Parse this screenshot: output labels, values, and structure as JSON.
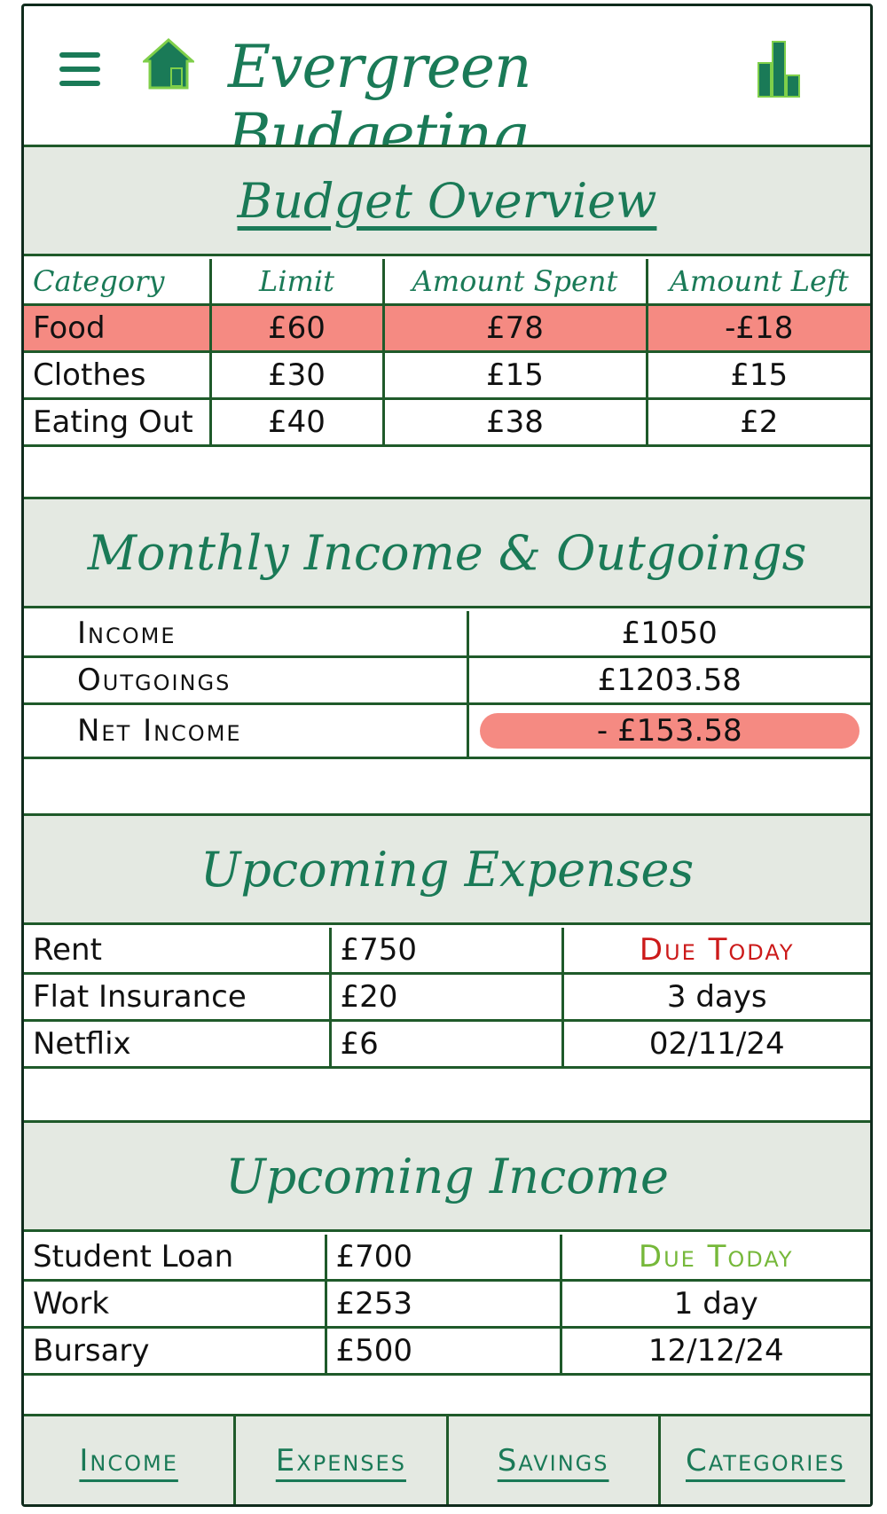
{
  "header": {
    "title": "Evergreen Budgeting",
    "menu_icon": "hamburger-menu-icon",
    "home_icon": "home-icon",
    "stats_icon": "bar-chart-icon"
  },
  "budget_overview": {
    "heading": "Budget Overview",
    "columns": [
      "Category",
      "Limit",
      "Amount Spent",
      "Amount Left"
    ],
    "rows": [
      {
        "category": "Food",
        "limit": "£60",
        "spent": "£78",
        "left": "-£18"
      },
      {
        "category": "Clothes",
        "limit": "£30",
        "spent": "£15",
        "left": "£15"
      },
      {
        "category": "Eating Out",
        "limit": "£40",
        "spent": "£38",
        "left": "£2"
      }
    ]
  },
  "monthly": {
    "heading": "Monthly Income & Outgoings",
    "rows": [
      {
        "label": "Income",
        "value": "£1050"
      },
      {
        "label": "Outgoings",
        "value": "£1203.58"
      },
      {
        "label": "Net Income",
        "value": "- £153.58"
      }
    ]
  },
  "upcoming_expenses": {
    "heading": "Upcoming Expenses",
    "rows": [
      {
        "name": "Rent",
        "amount": "£750",
        "due": "Due Today"
      },
      {
        "name": "Flat Insurance",
        "amount": "£20",
        "due": "3 days"
      },
      {
        "name": "Netflix",
        "amount": "£6",
        "due": "02/11/24"
      }
    ]
  },
  "upcoming_income": {
    "heading": "Upcoming Income",
    "rows": [
      {
        "name": "Student Loan",
        "amount": "£700",
        "due": "Due Today"
      },
      {
        "name": "Work",
        "amount": "£253",
        "due": "1 day"
      },
      {
        "name": "Bursary",
        "amount": "£500",
        "due": "12/12/24"
      }
    ]
  },
  "nav": {
    "income": "Income",
    "expenses": "Expenses",
    "savings": "Savings",
    "categories": "Categories"
  },
  "colors": {
    "accent": "#1a7a57",
    "border": "#1f5a2a",
    "panel": "#e4e9e2",
    "negative_highlight": "#f58a82",
    "due_red": "#cc1a1a",
    "due_green": "#76b83a"
  }
}
